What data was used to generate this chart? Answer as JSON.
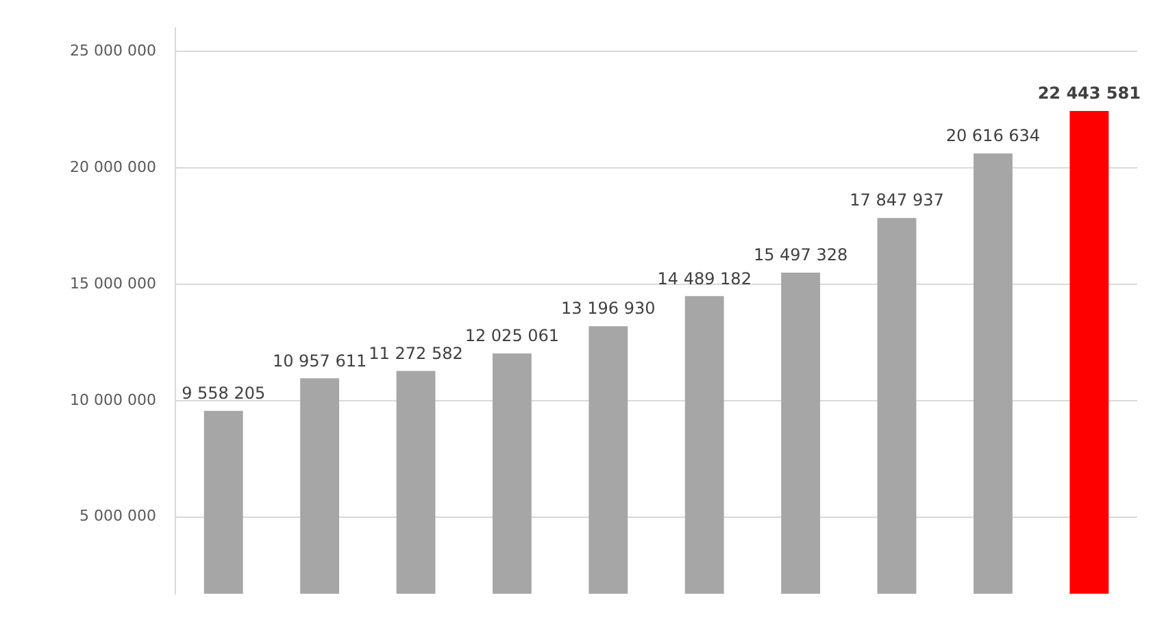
{
  "chart_data": {
    "type": "bar",
    "categories": [
      null,
      null,
      null,
      null,
      null,
      null,
      null,
      null,
      null,
      null
    ],
    "values": [
      9558205,
      10957611,
      11272582,
      12025061,
      13196930,
      14489182,
      15497328,
      17847937,
      20616634,
      22443581
    ],
    "colors": [
      "#a6a6a6",
      "#a6a6a6",
      "#a6a6a6",
      "#a6a6a6",
      "#a6a6a6",
      "#a6a6a6",
      "#a6a6a6",
      "#a6a6a6",
      "#a6a6a6",
      "#ff0000"
    ],
    "value_labels": [
      "9 558 205",
      "10 957 611",
      "11 272 582",
      "12 025 061",
      "13 196 930",
      "14 489 182",
      "15 497 328",
      "17 847 937",
      "20 616 634",
      "22 443 581"
    ],
    "ylim": [
      1700000,
      26000000
    ],
    "yticks": [
      {
        "value": 5000000,
        "label": "5 000 000"
      },
      {
        "value": 10000000,
        "label": "10 000 000"
      },
      {
        "value": 15000000,
        "label": "15 000 000"
      },
      {
        "value": 20000000,
        "label": "20 000 000"
      },
      {
        "value": 25000000,
        "label": "25 000 000"
      }
    ],
    "grid": "y",
    "legend": false
  }
}
